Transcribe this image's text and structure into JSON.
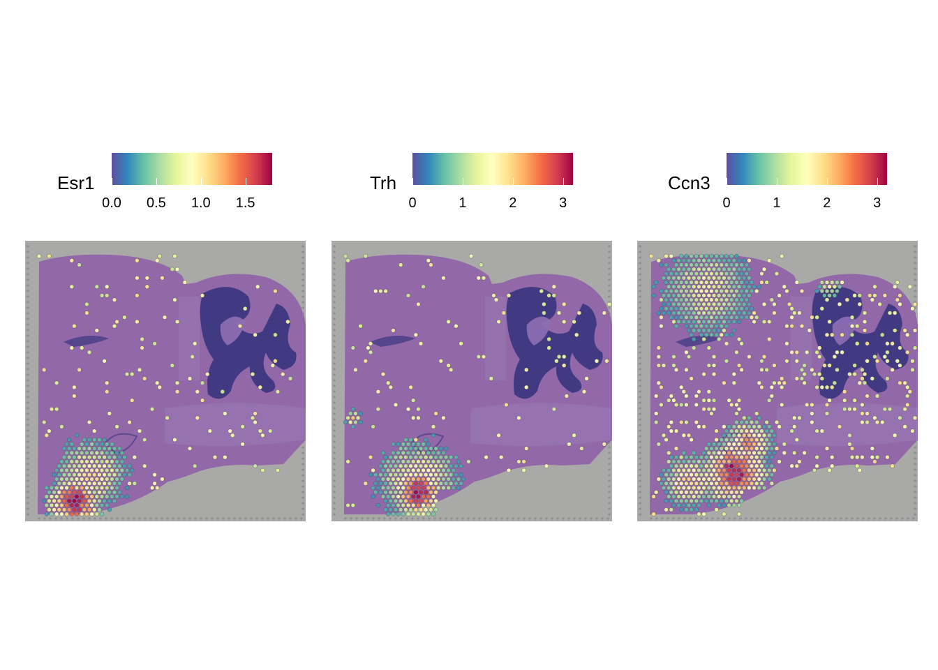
{
  "chart_data": [
    {
      "type": "scatter",
      "title": "Esr1",
      "legend": {
        "position": "top",
        "ticks": [
          "0.0",
          "0.5",
          "1.0",
          "1.5"
        ],
        "tick_values": [
          0,
          0.5,
          1.0,
          1.5
        ],
        "range": [
          0,
          1.8
        ]
      },
      "hotspots": [
        {
          "region": "bottom-left",
          "value": 1.8
        },
        {
          "region": "lower-left",
          "value": 1.0
        }
      ]
    },
    {
      "type": "scatter",
      "title": "Trh",
      "legend": {
        "position": "top",
        "ticks": [
          "0",
          "1",
          "2",
          "3"
        ],
        "tick_values": [
          0,
          1,
          2,
          3
        ],
        "range": [
          0,
          3.2
        ]
      },
      "hotspots": [
        {
          "region": "bottom-center-left",
          "value": 3.1
        },
        {
          "region": "left-edge",
          "value": 2.0
        }
      ]
    },
    {
      "type": "scatter",
      "title": "Ccn3",
      "legend": {
        "position": "top",
        "ticks": [
          "0",
          "1",
          "2",
          "3"
        ],
        "tick_values": [
          0,
          1,
          2,
          3
        ],
        "range": [
          0,
          3.2
        ]
      },
      "hotspots": [
        {
          "region": "bottom-center",
          "value": 3.0
        },
        {
          "region": "upper-left",
          "value": 1.5
        },
        {
          "region": "top-right-edge",
          "value": 2.5
        }
      ]
    }
  ],
  "colors": {
    "palette": [
      "#5e4fa2",
      "#3288bd",
      "#66c2a5",
      "#abdda4",
      "#e6f598",
      "#ffffbf",
      "#fee08b",
      "#fdae61",
      "#f46d43",
      "#d53e4f",
      "#9e0142"
    ],
    "background": "#a9aaa8",
    "tissue": "#8e5fa8",
    "dense_region": "#3b3680"
  }
}
